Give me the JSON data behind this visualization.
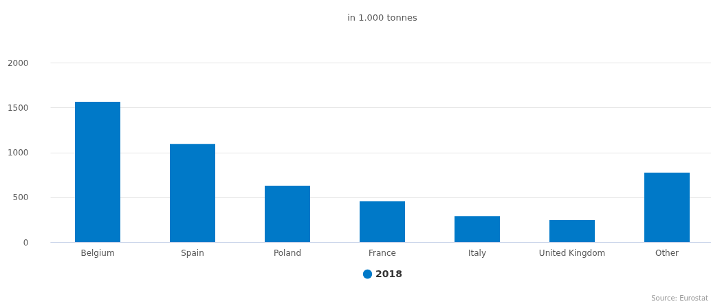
{
  "chart_data": {
    "type": "bar",
    "title": "in 1.000 tonnes",
    "categories": [
      "Belgium",
      "Spain",
      "Poland",
      "France",
      "Italy",
      "United Kingdom",
      "Other"
    ],
    "series": [
      {
        "name": "2018",
        "color": "#0079c8",
        "values": [
          1563,
          1093,
          628,
          456,
          289,
          245,
          773
        ]
      }
    ],
    "ylim": [
      0,
      2000
    ],
    "yticks": [
      0,
      500,
      1000,
      1500,
      2000
    ],
    "grid": "y",
    "legend": "bottom",
    "annotations": [
      "Source: Eurostat"
    ]
  }
}
